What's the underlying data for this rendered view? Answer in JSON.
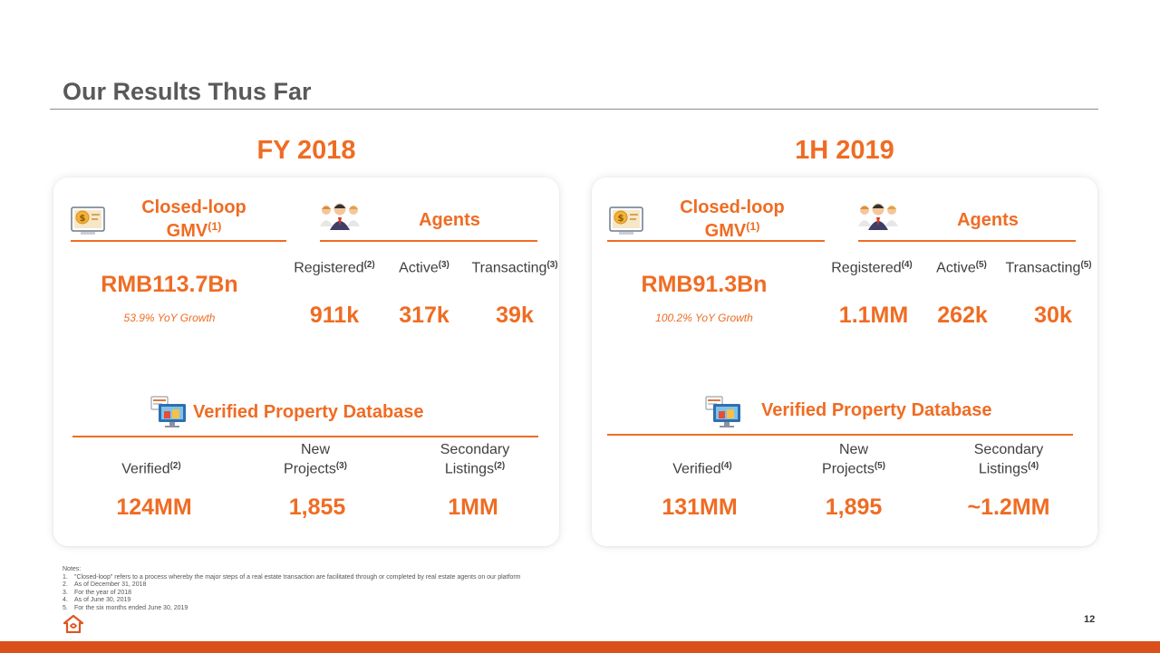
{
  "slide": {
    "title": "Our Results Thus Far",
    "page_number": "12"
  },
  "panels": [
    {
      "period": "FY 2018",
      "gmv": {
        "title_line1": "Closed-loop",
        "title_line2": "GMV",
        "note": "(1)",
        "value": "RMB113.7Bn",
        "growth": "53.9% YoY Growth"
      },
      "agents": {
        "title": "Agents",
        "metrics": [
          {
            "label": "Registered",
            "note": "(2)",
            "value": "911k"
          },
          {
            "label": "Active",
            "note": "(3)",
            "value": "317k"
          },
          {
            "label": "Transacting",
            "note": "(3)",
            "value": "39k"
          }
        ]
      },
      "database": {
        "title": "Verified Property Database",
        "metrics": [
          {
            "label_line1": "",
            "label_line2": "Verified",
            "note": "(2)",
            "value": "124MM"
          },
          {
            "label_line1": "New",
            "label_line2": "Projects",
            "note": "(3)",
            "value": "1,855"
          },
          {
            "label_line1": "Secondary",
            "label_line2": "Listings",
            "note": "(2)",
            "value": "1MM"
          }
        ]
      }
    },
    {
      "period": "1H 2019",
      "gmv": {
        "title_line1": "Closed-loop",
        "title_line2": "GMV",
        "note": "(1)",
        "value": "RMB91.3Bn",
        "growth": "100.2% YoY Growth"
      },
      "agents": {
        "title": "Agents",
        "metrics": [
          {
            "label": "Registered",
            "note": "(4)",
            "value": "1.1MM"
          },
          {
            "label": "Active",
            "note": "(5)",
            "value": "262k"
          },
          {
            "label": "Transacting",
            "note": "(5)",
            "value": "30k"
          }
        ]
      },
      "database": {
        "title": "Verified Property Database",
        "metrics": [
          {
            "label_line1": "",
            "label_line2": "Verified",
            "note": "(4)",
            "value": "131MM"
          },
          {
            "label_line1": "New",
            "label_line2": "Projects",
            "note": "(5)",
            "value": "1,895"
          },
          {
            "label_line1": "Secondary",
            "label_line2": "Listings",
            "note": "(4)",
            "value": "~1.2MM"
          }
        ]
      }
    }
  ],
  "notes": {
    "heading": "Notes:",
    "items": [
      {
        "num": "1.",
        "text": "\"Closed-loop\" refers to a process whereby the major steps of a real estate transaction are facilitated through or completed by real estate agents on our platform"
      },
      {
        "num": "2.",
        "text": "As of December 31, 2018"
      },
      {
        "num": "3.",
        "text": "For the year of 2018"
      },
      {
        "num": "4.",
        "text": "As of June 30, 2019"
      },
      {
        "num": "5.",
        "text": "For the six months ended June 30, 2019"
      }
    ]
  },
  "icons": {
    "gmv": "money-screen-icon",
    "agents": "agents-group-icon",
    "database": "property-database-icon",
    "logo": "house-logo-icon"
  },
  "colors": {
    "accent": "#ef6c23",
    "footer": "#d9501a"
  }
}
